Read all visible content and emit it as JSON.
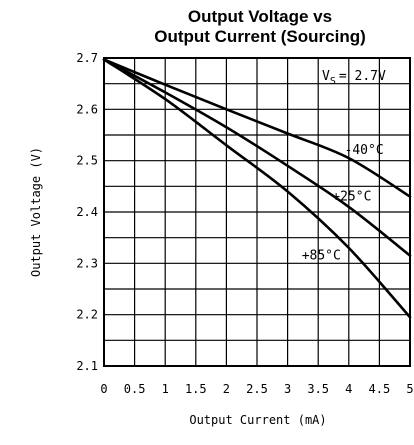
{
  "chart_data": {
    "type": "line",
    "title_line1": "Output Voltage vs",
    "title_line2": "Output Current (Sourcing)",
    "xlabel": "Output Current (mA)",
    "ylabel": "Output Voltage (V)",
    "xlim": [
      0,
      5
    ],
    "ylim": [
      2.1,
      2.7
    ],
    "x_ticks": [
      "0",
      "0.5",
      "1",
      "1.5",
      "2",
      "2.5",
      "3",
      "3.5",
      "4",
      "4.5",
      "5"
    ],
    "y_ticks": [
      "2.1",
      "2.2",
      "2.3",
      "2.4",
      "2.5",
      "2.6",
      "2.7"
    ],
    "x_minor_step": 0.5,
    "y_minor_step": 0.05,
    "grid": true,
    "condition": {
      "symbol": "V",
      "subscript": "S",
      "value": "= 2.7V"
    },
    "series": [
      {
        "name": "-40°C",
        "x": [
          0,
          1,
          2,
          3,
          4,
          5
        ],
        "y": [
          2.697,
          2.648,
          2.6,
          2.553,
          2.505,
          2.43
        ]
      },
      {
        "name": "+25°C",
        "x": [
          0,
          1,
          2,
          3,
          4,
          5
        ],
        "y": [
          2.697,
          2.633,
          2.565,
          2.49,
          2.41,
          2.315
        ]
      },
      {
        "name": "+85°C",
        "x": [
          0,
          1,
          2,
          3,
          4,
          5
        ],
        "y": [
          2.697,
          2.62,
          2.53,
          2.44,
          2.33,
          2.195
        ]
      }
    ]
  }
}
